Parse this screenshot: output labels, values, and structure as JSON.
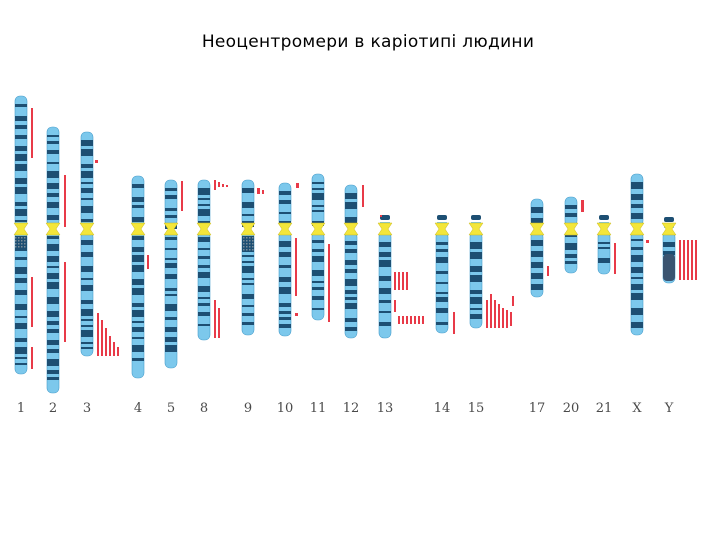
{
  "title": "Неоцентромери в каріотипі людини",
  "colors": {
    "chromosome_light": "#7cc8ec",
    "chromosome_dark": "#1d4f73",
    "centromere": "#f3e63a",
    "neocentromere_marker": "#e83a48"
  },
  "chromosomes": [
    {
      "label": "1"
    },
    {
      "label": "2"
    },
    {
      "label": "3"
    },
    {
      "label": "4"
    },
    {
      "label": "5"
    },
    {
      "label": "8"
    },
    {
      "label": "9"
    },
    {
      "label": "10"
    },
    {
      "label": "11"
    },
    {
      "label": "12"
    },
    {
      "label": "13"
    },
    {
      "label": "14"
    },
    {
      "label": "15"
    },
    {
      "label": "17"
    },
    {
      "label": "20"
    },
    {
      "label": "21"
    },
    {
      "label": "X"
    },
    {
      "label": "Y"
    }
  ]
}
